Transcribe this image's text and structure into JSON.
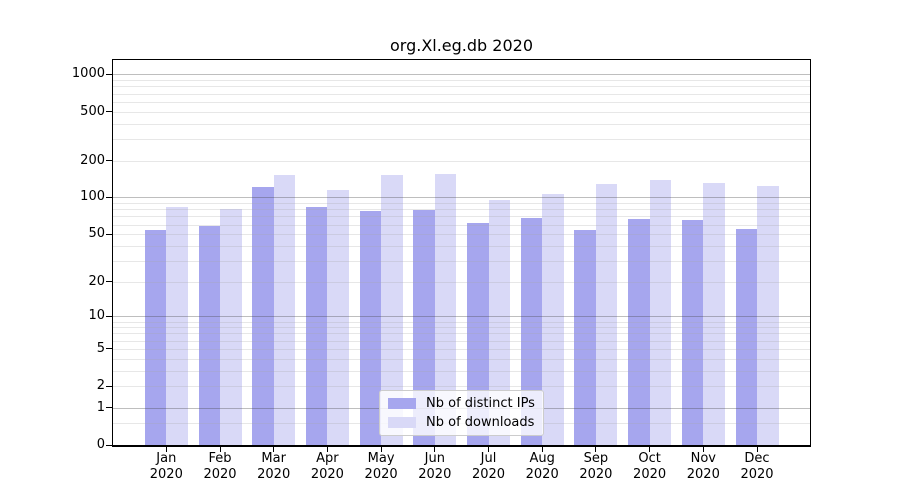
{
  "chart_data": {
    "type": "bar",
    "title": "org.Xl.eg.db 2020",
    "categories": [
      "Jan",
      "Feb",
      "Mar",
      "Apr",
      "May",
      "Jun",
      "Jul",
      "Aug",
      "Sep",
      "Oct",
      "Nov",
      "Dec"
    ],
    "x_tick_second_line": "2020",
    "series": [
      {
        "name": "Nb of distinct IPs",
        "color": "#a6a6ee",
        "values": [
          54,
          58,
          121,
          84,
          78,
          79,
          62,
          68,
          54,
          67,
          65,
          55
        ]
      },
      {
        "name": "Nb of downloads",
        "color": "#d9d9f7",
        "values": [
          84,
          81,
          152,
          116,
          152,
          156,
          95,
          107,
          128,
          138,
          131,
          125
        ]
      }
    ],
    "yscale": "log1p",
    "ylim": [
      0,
      1290
    ],
    "y_tick_values": [
      0,
      1,
      2,
      5,
      10,
      20,
      50,
      100,
      200,
      500,
      1000
    ],
    "y_major_gridlines": [
      1,
      10,
      100,
      1000
    ],
    "y_minor_gridlines": [
      0.5,
      2,
      3,
      4,
      5,
      6,
      7,
      8,
      9,
      20,
      30,
      40,
      50,
      60,
      70,
      80,
      90,
      200,
      300,
      400,
      500,
      600,
      700,
      800,
      900
    ],
    "grid": true,
    "legend_position": "lower-center",
    "legend_entries": [
      "Nb of distinct IPs",
      "Nb of downloads"
    ]
  },
  "colors": {
    "background": "#ffffff",
    "axis": "#000000",
    "text": "#000000",
    "grid_major": "rgba(70,70,70,0.35)",
    "grid_minor": "rgba(170,170,170,0.28)"
  }
}
